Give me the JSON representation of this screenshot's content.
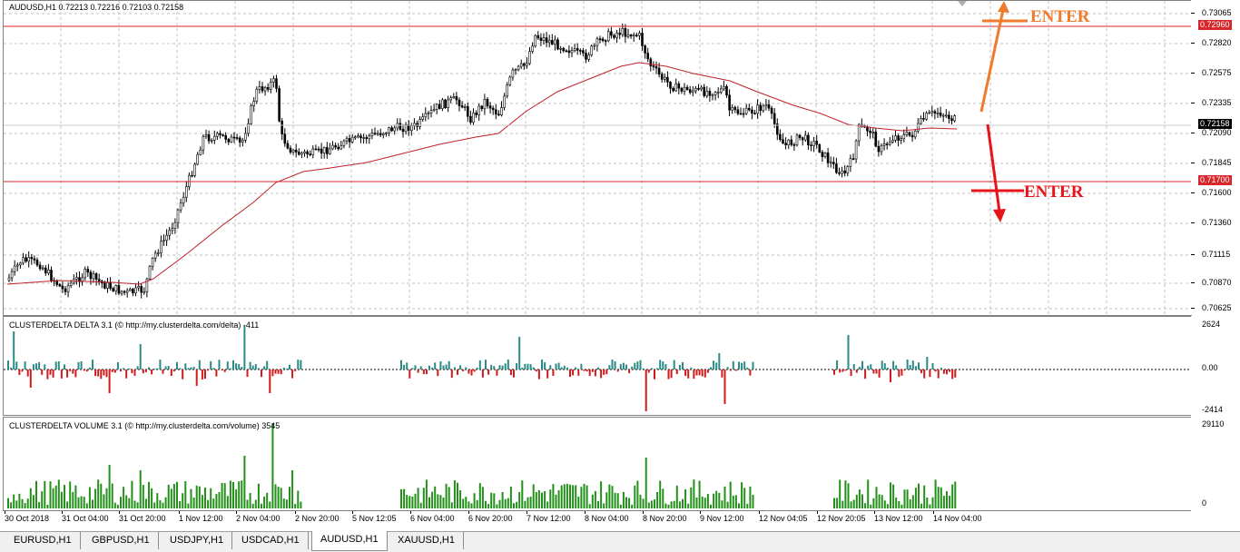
{
  "chart": {
    "symbol_header": "AUDUSD,H1  0.72213 0.72216 0.72103 0.72158",
    "price_scale": [
      "0.73065",
      "0.72820",
      "0.72575",
      "0.72335",
      "0.72090",
      "0.71845",
      "0.71600",
      "0.71360",
      "0.71115",
      "0.70870",
      "0.70625"
    ],
    "price_labels": {
      "upper_line": "0.72960",
      "current": "0.72158",
      "lower_line": "0.71700"
    },
    "time_labels": [
      "30 Oct 2018",
      "31 Oct 04:00",
      "31 Oct 20:00",
      "1 Nov 12:00",
      "2 Nov 04:00",
      "2 Nov 20:00",
      "5 Nov 12:05",
      "6 Nov 04:00",
      "6 Nov 20:00",
      "7 Nov 12:00",
      "8 Nov 04:00",
      "8 Nov 20:00",
      "9 Nov 12:00",
      "12 Nov 04:05",
      "12 Nov 20:05",
      "13 Nov 12:00",
      "14 Nov 04:00"
    ],
    "annotations": {
      "enter_top": "ENTER",
      "enter_bottom": "ENTER"
    },
    "colors": {
      "line_red": "#d9262b",
      "arrow_orange": "#f07b2a",
      "arrow_red": "#e8141b",
      "delta_pos": "#2a8a86",
      "delta_neg": "#d11a1a",
      "volume": "#23901a",
      "ma": "#c0202a"
    }
  },
  "delta_panel": {
    "title": "CLUSTERDELTA DELTA 3.1 (© http://my.clusterdelta.com/delta) -411",
    "scale": [
      "2624",
      "0.00",
      "-2414"
    ]
  },
  "volume_panel": {
    "title": "CLUSTERDELTA VOLUME 3.1 (© http://my.clusterdelta.com/volume) 3545",
    "scale": [
      "29110",
      "0"
    ]
  },
  "tabs": [
    "EURUSD,H1",
    "GBPUSD,H1",
    "USDJPY,H1",
    "USDCAD,H1",
    "AUDUSD,H1",
    "XAUUSD,H1"
  ],
  "active_tab": "AUDUSD,H1"
}
